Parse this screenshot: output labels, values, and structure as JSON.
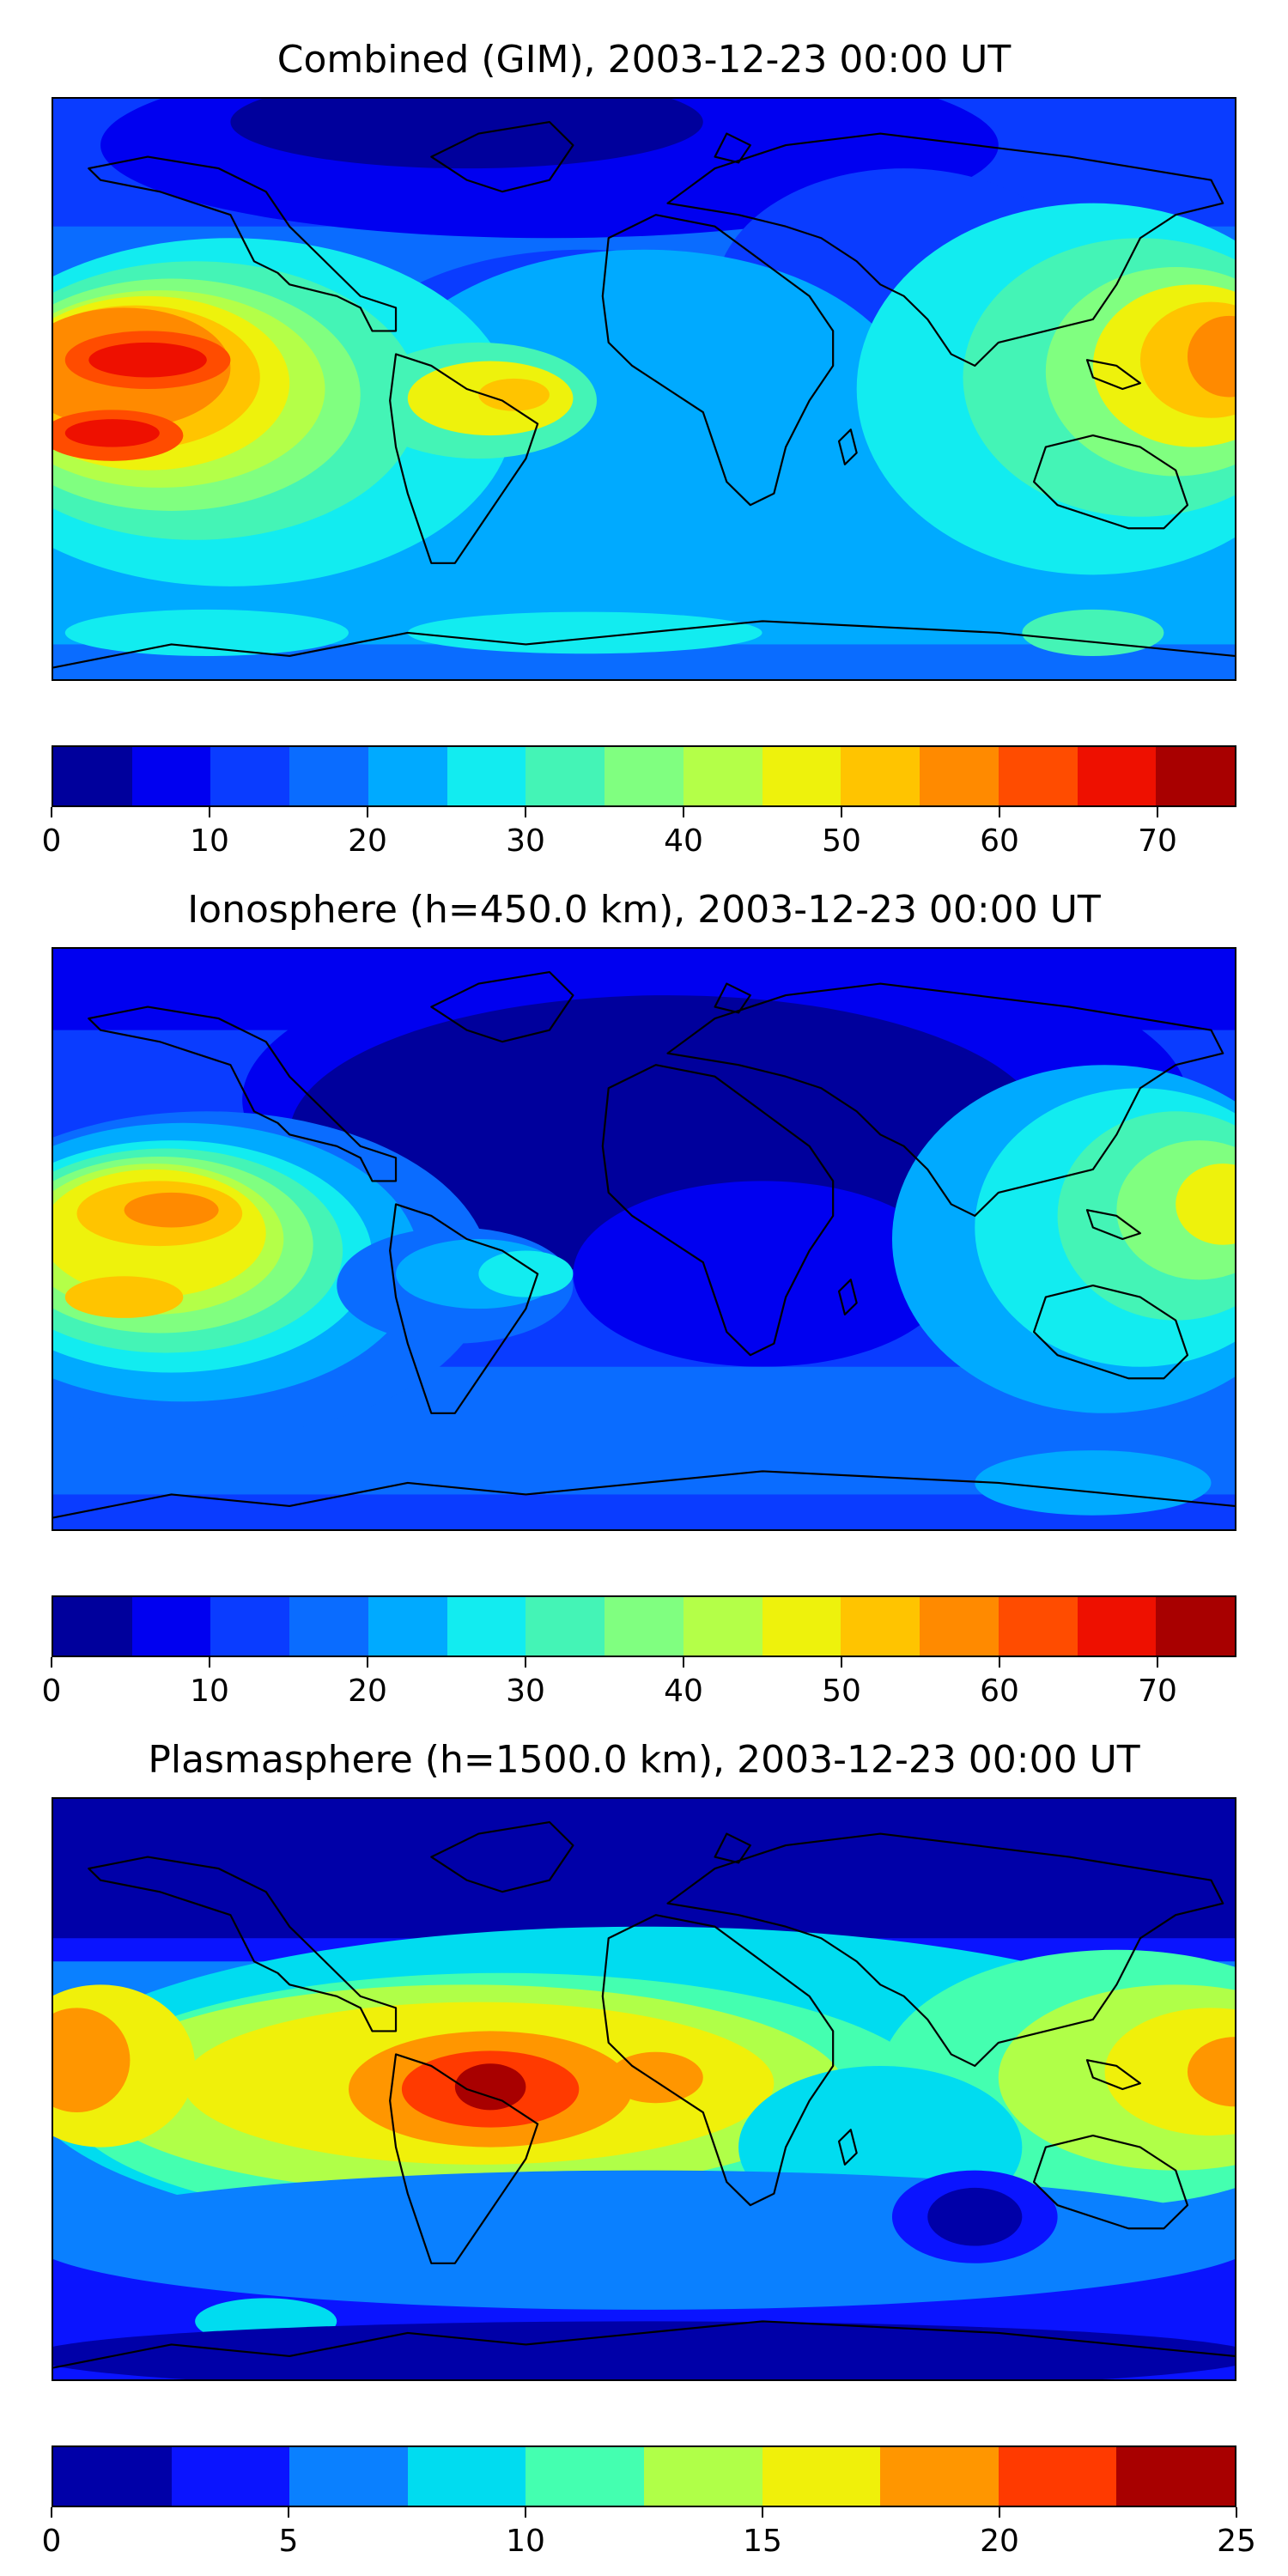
{
  "panels": [
    {
      "title": "Combined (GIM), 2003-12-23 00:00 UT",
      "colorbar": {
        "ticks": [
          "0",
          "10",
          "20",
          "30",
          "40",
          "50",
          "60",
          "70"
        ],
        "tick_values": [
          0,
          10,
          20,
          30,
          40,
          50,
          60,
          70
        ],
        "range": [
          0,
          75
        ],
        "colors": [
          "#00009c",
          "#0000f0",
          "#0a3cff",
          "#0a6cff",
          "#00aaff",
          "#12ecf0",
          "#44f4b6",
          "#80ff80",
          "#b4ff48",
          "#eef20c",
          "#ffc400",
          "#ff8a00",
          "#ff4c00",
          "#ee1000",
          "#a80000"
        ]
      }
    },
    {
      "title": "Ionosphere  (h=450.0 km), 2003-12-23 00:00 UT",
      "colorbar": {
        "ticks": [
          "0",
          "10",
          "20",
          "30",
          "40",
          "50",
          "60",
          "70"
        ],
        "tick_values": [
          0,
          10,
          20,
          30,
          40,
          50,
          60,
          70
        ],
        "range": [
          0,
          75
        ],
        "colors": [
          "#00009c",
          "#0000f0",
          "#0a3cff",
          "#0a6cff",
          "#00aaff",
          "#12ecf0",
          "#44f4b6",
          "#80ff80",
          "#b4ff48",
          "#eef20c",
          "#ffc400",
          "#ff8a00",
          "#ff4c00",
          "#ee1000",
          "#a80000"
        ]
      }
    },
    {
      "title": "Plasmasphere (h=1500.0 km), 2003-12-23 00:00 UT",
      "colorbar": {
        "ticks": [
          "0",
          "5",
          "10",
          "15",
          "20",
          "25"
        ],
        "tick_values": [
          0,
          5,
          10,
          15,
          20,
          25
        ],
        "range": [
          0,
          25
        ],
        "colors": [
          "#0000a8",
          "#0a14ff",
          "#0a80ff",
          "#00dcf0",
          "#44ffb0",
          "#b0ff48",
          "#f0f00a",
          "#ff9600",
          "#ff3a00",
          "#a80000"
        ]
      }
    }
  ]
}
